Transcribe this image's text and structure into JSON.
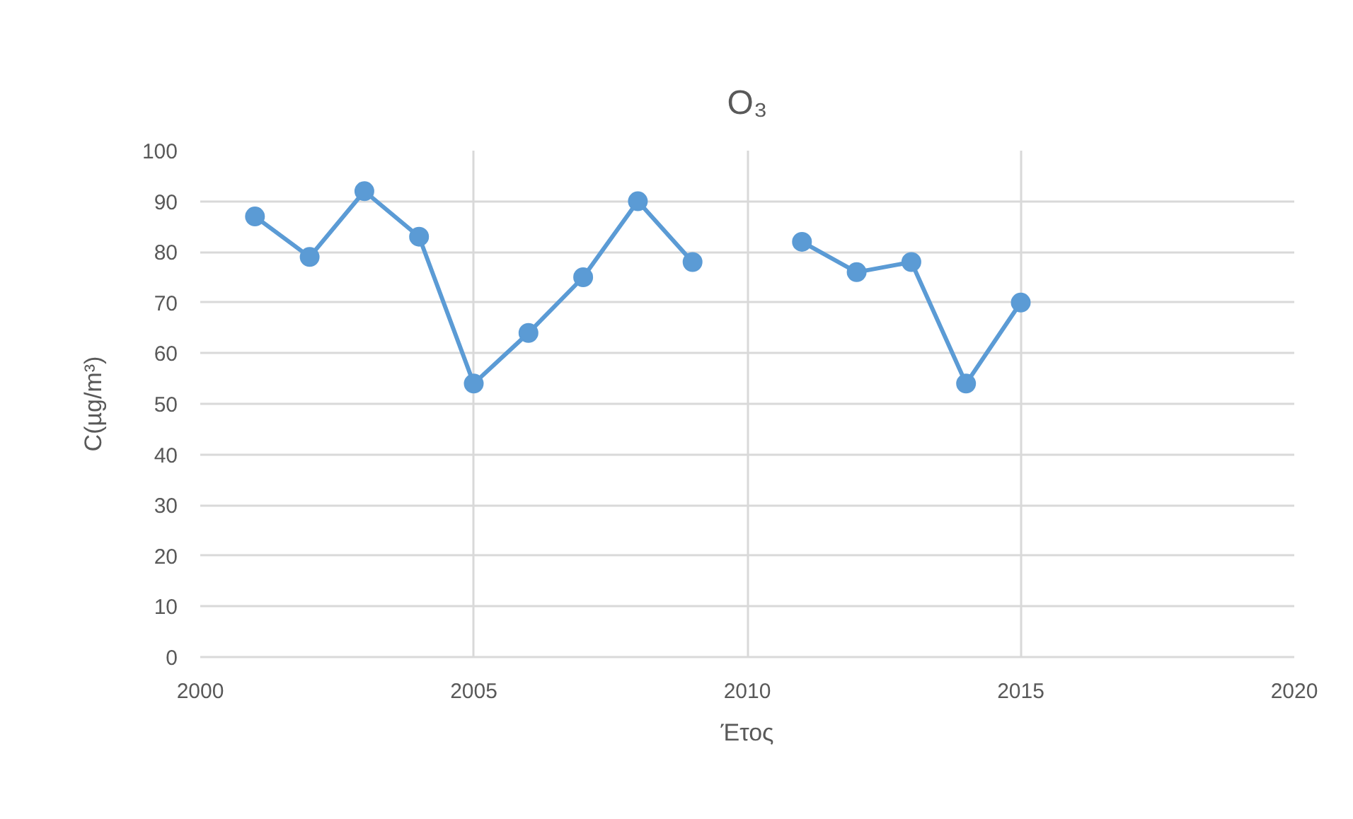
{
  "chart_data": {
    "type": "line",
    "title": "O₃",
    "xlabel": "Έτος",
    "ylabel": "C(µg/m³)",
    "x": [
      2001,
      2002,
      2003,
      2004,
      2005,
      2006,
      2007,
      2008,
      2009,
      2010,
      2011,
      2012,
      2013,
      2014,
      2015
    ],
    "values": [
      87,
      79,
      92,
      83,
      54,
      64,
      75,
      90,
      78,
      null,
      82,
      76,
      78,
      54,
      70
    ],
    "color": "#5b9bd5",
    "xlim": [
      2000,
      2020
    ],
    "xticks": [
      2000,
      2005,
      2010,
      2015,
      2020
    ],
    "ylim": [
      0,
      100
    ],
    "yticks": [
      0,
      10,
      20,
      30,
      40,
      50,
      60,
      70,
      80,
      90,
      100
    ],
    "grid": true,
    "marker": "circle",
    "line_style": "solid"
  }
}
